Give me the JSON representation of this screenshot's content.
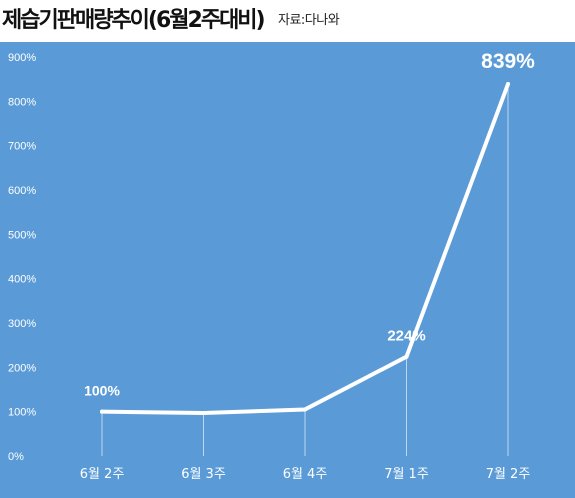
{
  "header": {
    "title": "제습기판매량추이(6월2주대비)",
    "source": "자료:다나와"
  },
  "colors": {
    "background": "#5a9bd7",
    "line": "#ffffff",
    "text": "#ffffff"
  },
  "chart_data": {
    "type": "line",
    "title": "제습기판매량추이(6월2주대비)",
    "xlabel": "",
    "ylabel": "",
    "categories": [
      "6월 2주",
      "6월 3주",
      "6월 4주",
      "7월 1주",
      "7월 2주"
    ],
    "series": [
      {
        "values": [
          100,
          97,
          105,
          224,
          839
        ]
      }
    ],
    "data_labels": [
      "100%",
      "",
      "",
      "224%",
      "839%"
    ],
    "y_ticks": [
      "0%",
      "100%",
      "200%",
      "300%",
      "400%",
      "500%",
      "600%",
      "700%",
      "800%",
      "900%"
    ],
    "ylim": [
      0,
      900
    ],
    "grid": false,
    "legend": "none"
  }
}
